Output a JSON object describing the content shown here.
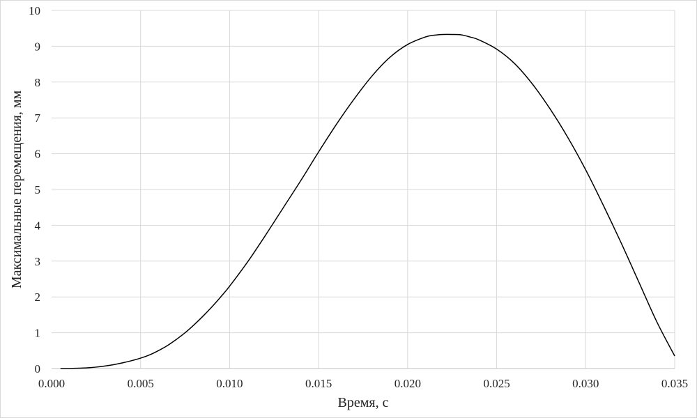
{
  "chart_data": {
    "type": "line",
    "title": "",
    "xlabel": "Время, с",
    "ylabel": "Максимальные перемещения, мм",
    "xlim": [
      0.0,
      0.035
    ],
    "ylim": [
      0,
      10
    ],
    "x_ticks": [
      "0.000",
      "0.005",
      "0.010",
      "0.015",
      "0.020",
      "0.025",
      "0.030",
      "0.035"
    ],
    "y_ticks": [
      "0",
      "1",
      "2",
      "3",
      "4",
      "5",
      "6",
      "7",
      "8",
      "9",
      "10"
    ],
    "grid": true,
    "legend": "none",
    "line_color": "#000000",
    "series": [
      {
        "x": [
          0.0005,
          0.001,
          0.0015,
          0.002,
          0.0025,
          0.003,
          0.0035,
          0.004,
          0.0045,
          0.005,
          0.0055,
          0.006,
          0.0065,
          0.007,
          0.0075,
          0.008,
          0.0085,
          0.009,
          0.0095,
          0.01,
          0.011,
          0.012,
          0.013,
          0.014,
          0.015,
          0.016,
          0.017,
          0.018,
          0.019,
          0.02,
          0.021,
          0.0215,
          0.022,
          0.0225,
          0.023,
          0.0235,
          0.024,
          0.025,
          0.026,
          0.027,
          0.028,
          0.029,
          0.03,
          0.031,
          0.032,
          0.033,
          0.034,
          0.035
        ],
        "values": [
          0.0,
          0.0,
          0.01,
          0.02,
          0.04,
          0.07,
          0.11,
          0.16,
          0.22,
          0.29,
          0.38,
          0.5,
          0.64,
          0.81,
          1.0,
          1.22,
          1.46,
          1.72,
          2.0,
          2.3,
          2.97,
          3.71,
          4.48,
          5.25,
          6.05,
          6.82,
          7.53,
          8.17,
          8.69,
          9.05,
          9.26,
          9.31,
          9.33,
          9.33,
          9.32,
          9.26,
          9.18,
          8.92,
          8.52,
          7.95,
          7.25,
          6.45,
          5.55,
          4.55,
          3.5,
          2.4,
          1.3,
          0.35
        ]
      }
    ]
  }
}
